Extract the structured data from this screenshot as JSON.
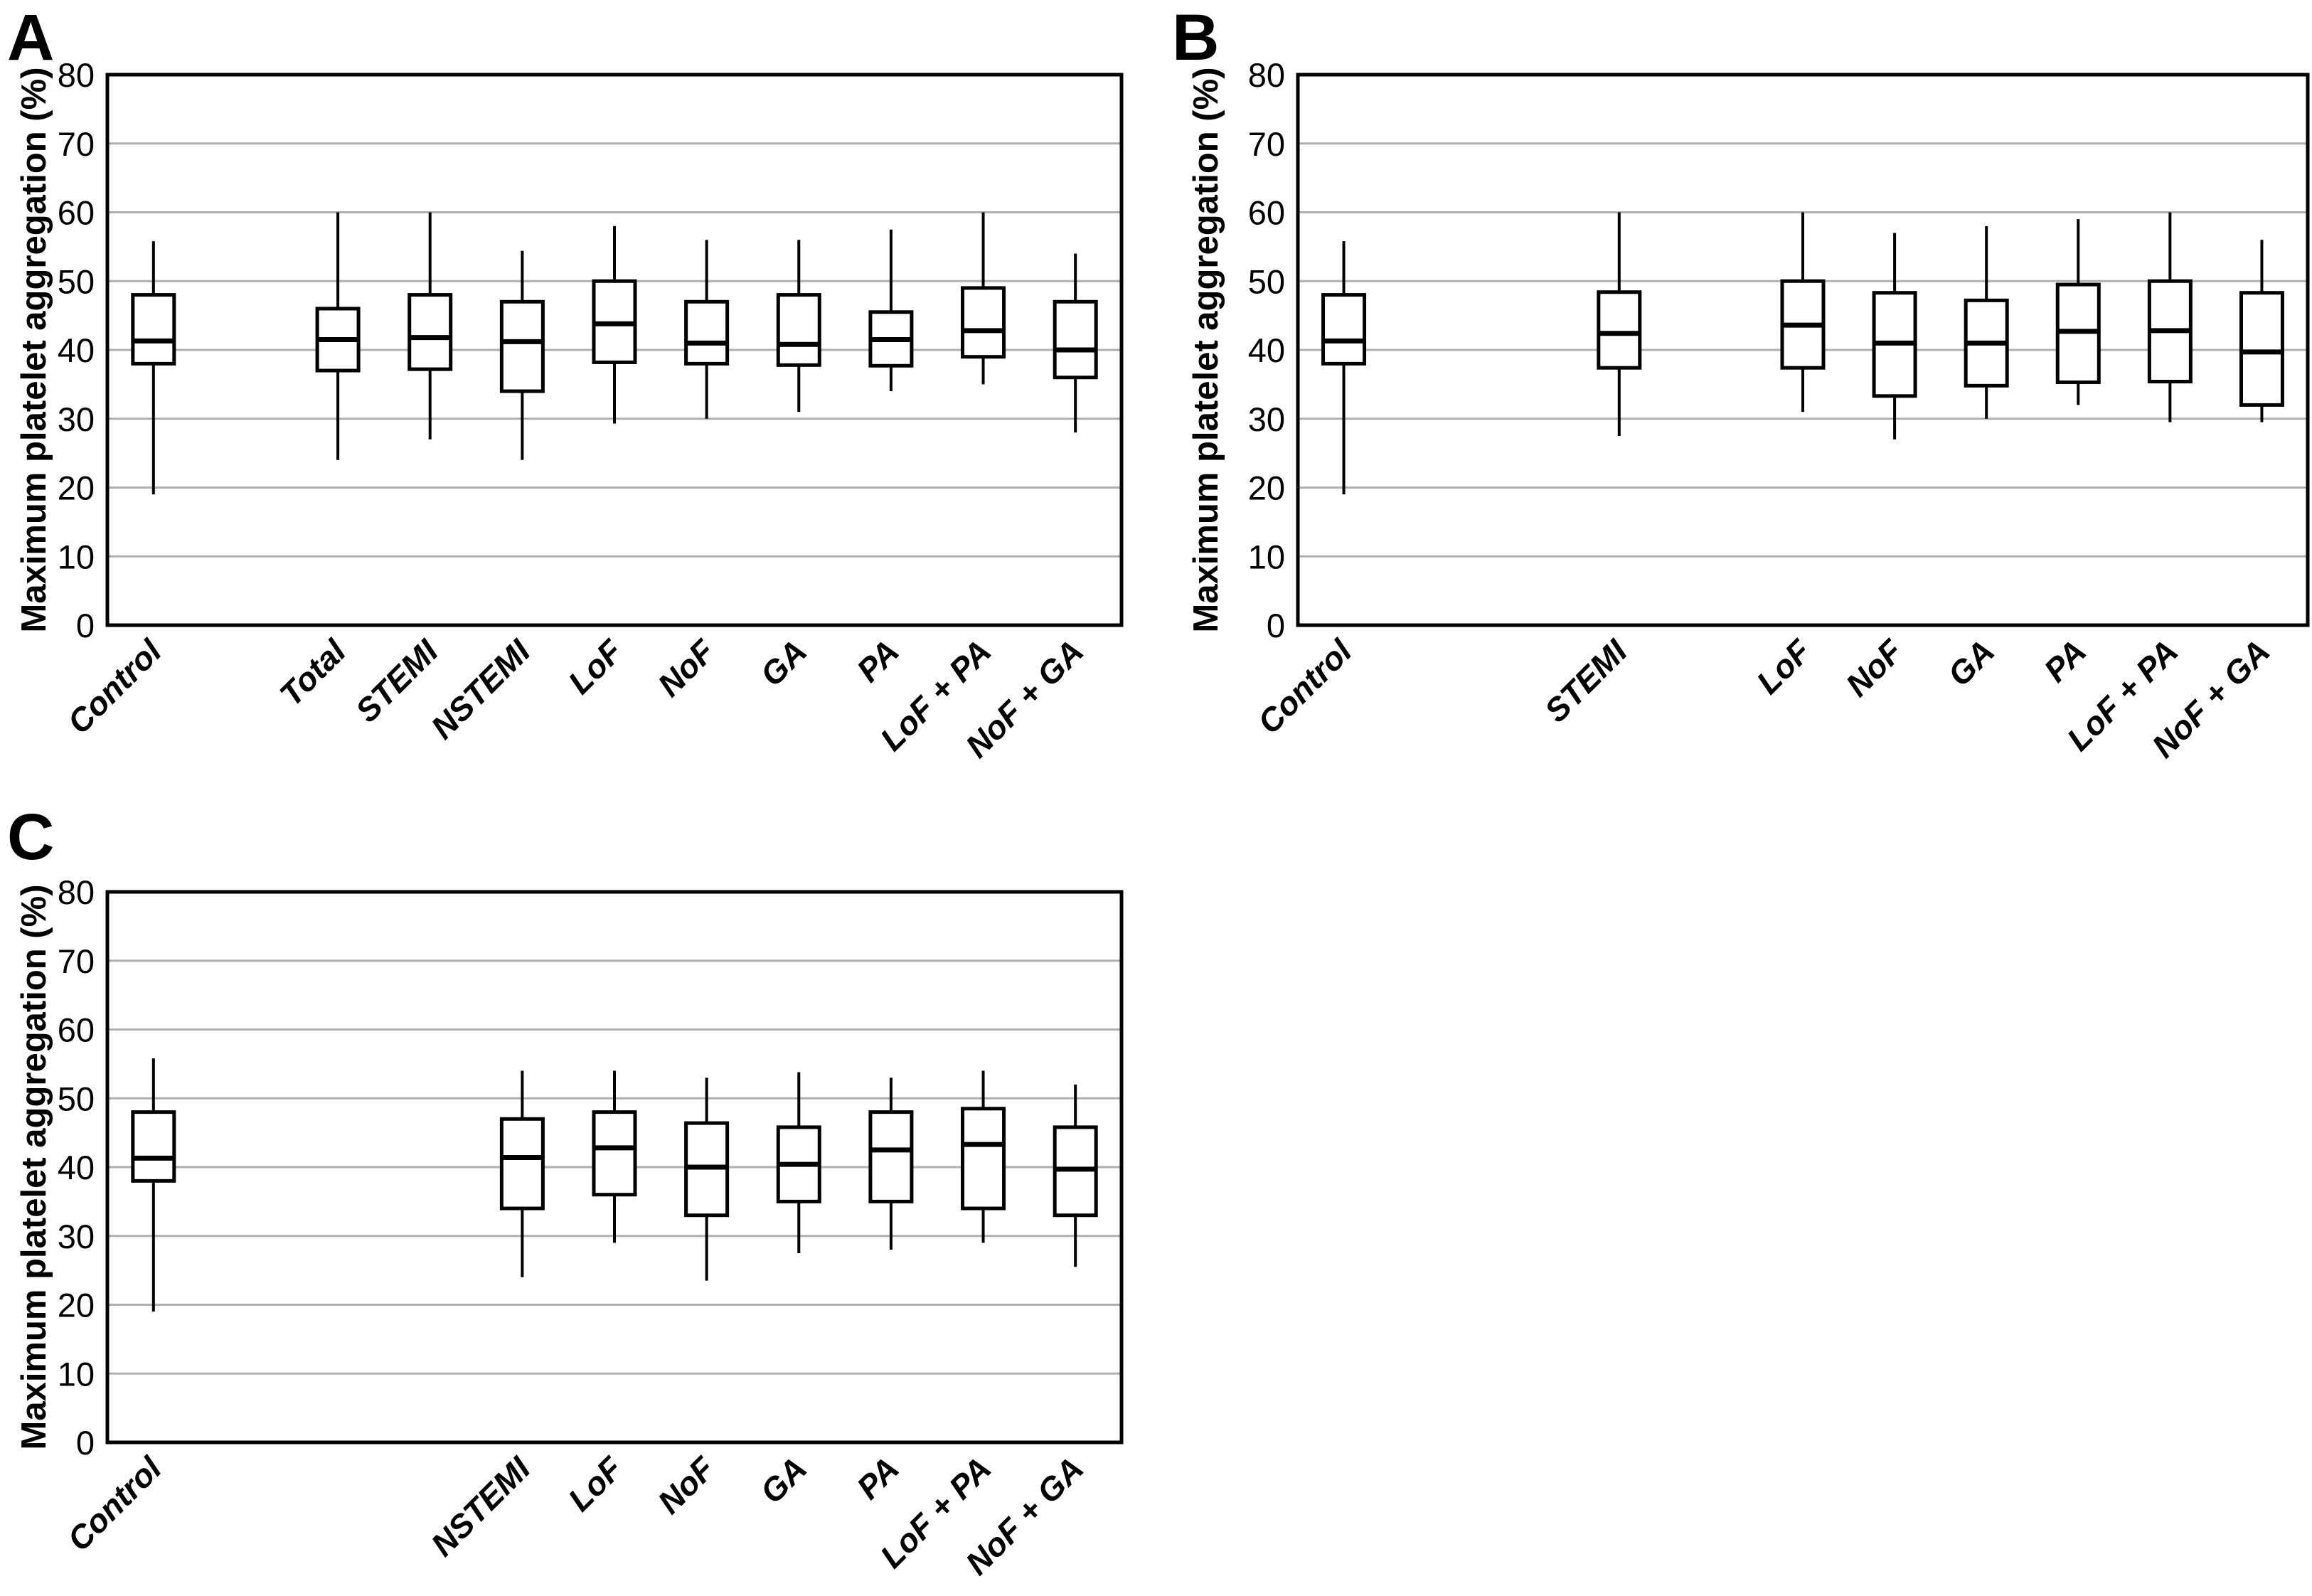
{
  "figure": {
    "background": "#ffffff",
    "axis_color": "#000000",
    "gridline_color": "#b0b0b0",
    "box_fill": "#ffffff",
    "box_stroke": "#000000",
    "y_axis_title": "Maximum platelet aggregation (%)"
  },
  "chart_data": [
    {
      "type": "box",
      "panel": "A",
      "ylabel": "Maximum platelet aggregation (%)",
      "ylim": [
        0,
        80
      ],
      "yticks": [
        0,
        10,
        20,
        30,
        40,
        50,
        60,
        70,
        80
      ],
      "grid": "horizontal-gray-lines",
      "legend": "none",
      "n_slots": 11,
      "categories": [
        "Control",
        "Total",
        "STEMI",
        "NSTEMI",
        "LoF",
        "NoF",
        "GA",
        "PA",
        "LoF + PA",
        "NoF + GA"
      ],
      "boxes": [
        {
          "label": "Control",
          "slot": 1,
          "whisker_low": 19,
          "q1": 38,
          "median": 41.3,
          "q3": 48,
          "whisker_high": 55.8
        },
        {
          "label": "Total",
          "slot": 3,
          "whisker_low": 24,
          "q1": 37,
          "median": 41.5,
          "q3": 46,
          "whisker_high": 60
        },
        {
          "label": "STEMI",
          "slot": 4,
          "whisker_low": 27,
          "q1": 37.2,
          "median": 41.8,
          "q3": 48,
          "whisker_high": 60
        },
        {
          "label": "NSTEMI",
          "slot": 5,
          "whisker_low": 24,
          "q1": 34,
          "median": 41.2,
          "q3": 47,
          "whisker_high": 54.4
        },
        {
          "label": "LoF",
          "slot": 6,
          "whisker_low": 29.3,
          "q1": 38.2,
          "median": 43.8,
          "q3": 50,
          "whisker_high": 58
        },
        {
          "label": "NoF",
          "slot": 7,
          "whisker_low": 30,
          "q1": 38,
          "median": 41,
          "q3": 47,
          "whisker_high": 56
        },
        {
          "label": "GA",
          "slot": 8,
          "whisker_low": 31,
          "q1": 37.8,
          "median": 40.8,
          "q3": 48,
          "whisker_high": 56
        },
        {
          "label": "PA",
          "slot": 9,
          "whisker_low": 34,
          "q1": 37.7,
          "median": 41.5,
          "q3": 45.5,
          "whisker_high": 57.5
        },
        {
          "label": "LoF + PA",
          "slot": 10,
          "whisker_low": 35,
          "q1": 39,
          "median": 42.8,
          "q3": 49,
          "whisker_high": 60
        },
        {
          "label": "NoF + GA",
          "slot": 11,
          "whisker_low": 28,
          "q1": 36,
          "median": 40,
          "q3": 47,
          "whisker_high": 54
        }
      ]
    },
    {
      "type": "box",
      "panel": "B",
      "ylabel": "Maximum platelet aggregation (%)",
      "ylim": [
        0,
        80
      ],
      "yticks": [
        0,
        10,
        20,
        30,
        40,
        50,
        60,
        70,
        80
      ],
      "grid": "horizontal-gray-lines",
      "legend": "none",
      "n_slots": 11,
      "categories": [
        "Control",
        "STEMI",
        "LoF",
        "NoF",
        "GA",
        "PA",
        "LoF + PA",
        "NoF + GA"
      ],
      "boxes": [
        {
          "label": "Control",
          "slot": 1,
          "whisker_low": 19,
          "q1": 38,
          "median": 41.3,
          "q3": 48,
          "whisker_high": 55.8
        },
        {
          "label": "STEMI",
          "slot": 4,
          "whisker_low": 27.5,
          "q1": 37.4,
          "median": 42.4,
          "q3": 48.4,
          "whisker_high": 60
        },
        {
          "label": "LoF",
          "slot": 6,
          "whisker_low": 31,
          "q1": 37.4,
          "median": 43.6,
          "q3": 50,
          "whisker_high": 60
        },
        {
          "label": "NoF",
          "slot": 7,
          "whisker_low": 27,
          "q1": 33.3,
          "median": 41,
          "q3": 48.3,
          "whisker_high": 57
        },
        {
          "label": "GA",
          "slot": 8,
          "whisker_low": 30,
          "q1": 34.8,
          "median": 41,
          "q3": 47.2,
          "whisker_high": 58
        },
        {
          "label": "PA",
          "slot": 9,
          "whisker_low": 32,
          "q1": 35.3,
          "median": 42.7,
          "q3": 49.5,
          "whisker_high": 59
        },
        {
          "label": "LoF + PA",
          "slot": 10,
          "whisker_low": 29.5,
          "q1": 35.4,
          "median": 42.8,
          "q3": 50,
          "whisker_high": 60
        },
        {
          "label": "NoF + GA",
          "slot": 11,
          "whisker_low": 29.5,
          "q1": 32,
          "median": 39.7,
          "q3": 48.3,
          "whisker_high": 56
        }
      ]
    },
    {
      "type": "box",
      "panel": "C",
      "ylabel": "Maximum platelet aggregation (%)",
      "ylim": [
        0,
        80
      ],
      "yticks": [
        0,
        10,
        20,
        30,
        40,
        50,
        60,
        70,
        80
      ],
      "grid": "horizontal-gray-lines",
      "legend": "none",
      "n_slots": 11,
      "categories": [
        "Control",
        "NSTEMI",
        "LoF",
        "NoF",
        "GA",
        "PA",
        "LoF + PA",
        "NoF + GA"
      ],
      "boxes": [
        {
          "label": "Control",
          "slot": 1,
          "whisker_low": 19,
          "q1": 38,
          "median": 41.3,
          "q3": 48,
          "whisker_high": 55.8
        },
        {
          "label": "NSTEMI",
          "slot": 5,
          "whisker_low": 24,
          "q1": 34,
          "median": 41.4,
          "q3": 47,
          "whisker_high": 54
        },
        {
          "label": "LoF",
          "slot": 6,
          "whisker_low": 29,
          "q1": 36,
          "median": 42.8,
          "q3": 48,
          "whisker_high": 54
        },
        {
          "label": "NoF",
          "slot": 7,
          "whisker_low": 23.5,
          "q1": 33,
          "median": 40,
          "q3": 46.4,
          "whisker_high": 53
        },
        {
          "label": "GA",
          "slot": 8,
          "whisker_low": 27.5,
          "q1": 35,
          "median": 40.4,
          "q3": 45.8,
          "whisker_high": 53.8
        },
        {
          "label": "PA",
          "slot": 9,
          "whisker_low": 28,
          "q1": 35,
          "median": 42.5,
          "q3": 48,
          "whisker_high": 53
        },
        {
          "label": "LoF + PA",
          "slot": 10,
          "whisker_low": 29,
          "q1": 34,
          "median": 43.3,
          "q3": 48.5,
          "whisker_high": 54
        },
        {
          "label": "NoF + GA",
          "slot": 11,
          "whisker_low": 25.5,
          "q1": 33,
          "median": 39.7,
          "q3": 45.8,
          "whisker_high": 52
        }
      ]
    }
  ]
}
